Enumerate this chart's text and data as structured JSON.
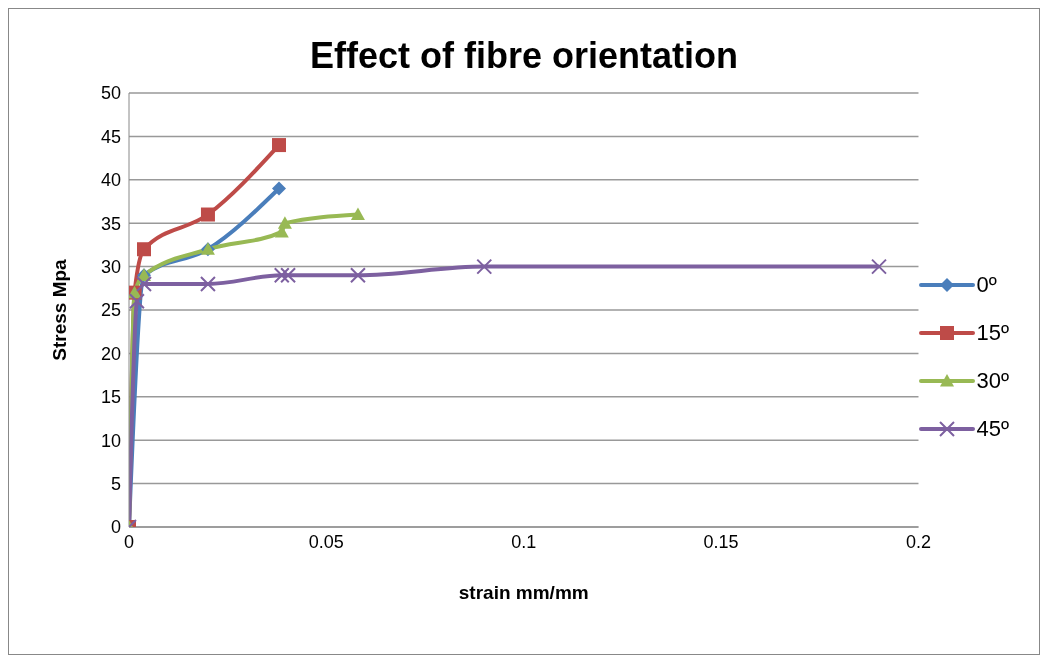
{
  "chart_data": {
    "type": "line",
    "title": "Effect of fibre orientation",
    "xlabel": "strain mm/mm",
    "ylabel": "Stress Mpa",
    "xlim": [
      0,
      0.2
    ],
    "xticks": [
      0,
      0.05,
      0.1,
      0.15,
      0.2
    ],
    "ylim": [
      0,
      50
    ],
    "yticks": [
      0,
      5,
      10,
      15,
      20,
      25,
      30,
      35,
      40,
      45,
      50
    ],
    "grid": "y",
    "legend": "right",
    "series": [
      {
        "name": "0º",
        "color": "#4a7ebb",
        "marker": "diamond",
        "x": [
          0,
          0.0038,
          0.02,
          0.038
        ],
        "values": [
          0,
          29,
          32,
          39
        ]
      },
      {
        "name": "15º",
        "color": "#be4b48",
        "marker": "square",
        "x": [
          0,
          0.0014,
          0.0038,
          0.02,
          0.038
        ],
        "values": [
          0,
          27,
          32,
          36,
          44
        ]
      },
      {
        "name": "30º",
        "color": "#98b954",
        "marker": "triangle",
        "x": [
          0,
          0.0014,
          0.0038,
          0.02,
          0.0387,
          0.0395,
          0.058
        ],
        "values": [
          0,
          27,
          29,
          32,
          34,
          35,
          36
        ]
      },
      {
        "name": "45º",
        "color": "#7d60a0",
        "marker": "cross",
        "x": [
          0,
          0.002,
          0.0038,
          0.02,
          0.0387,
          0.0403,
          0.058,
          0.09,
          0.19
        ],
        "values": [
          0,
          26,
          28,
          28,
          29,
          29,
          29,
          30,
          30
        ]
      }
    ]
  }
}
